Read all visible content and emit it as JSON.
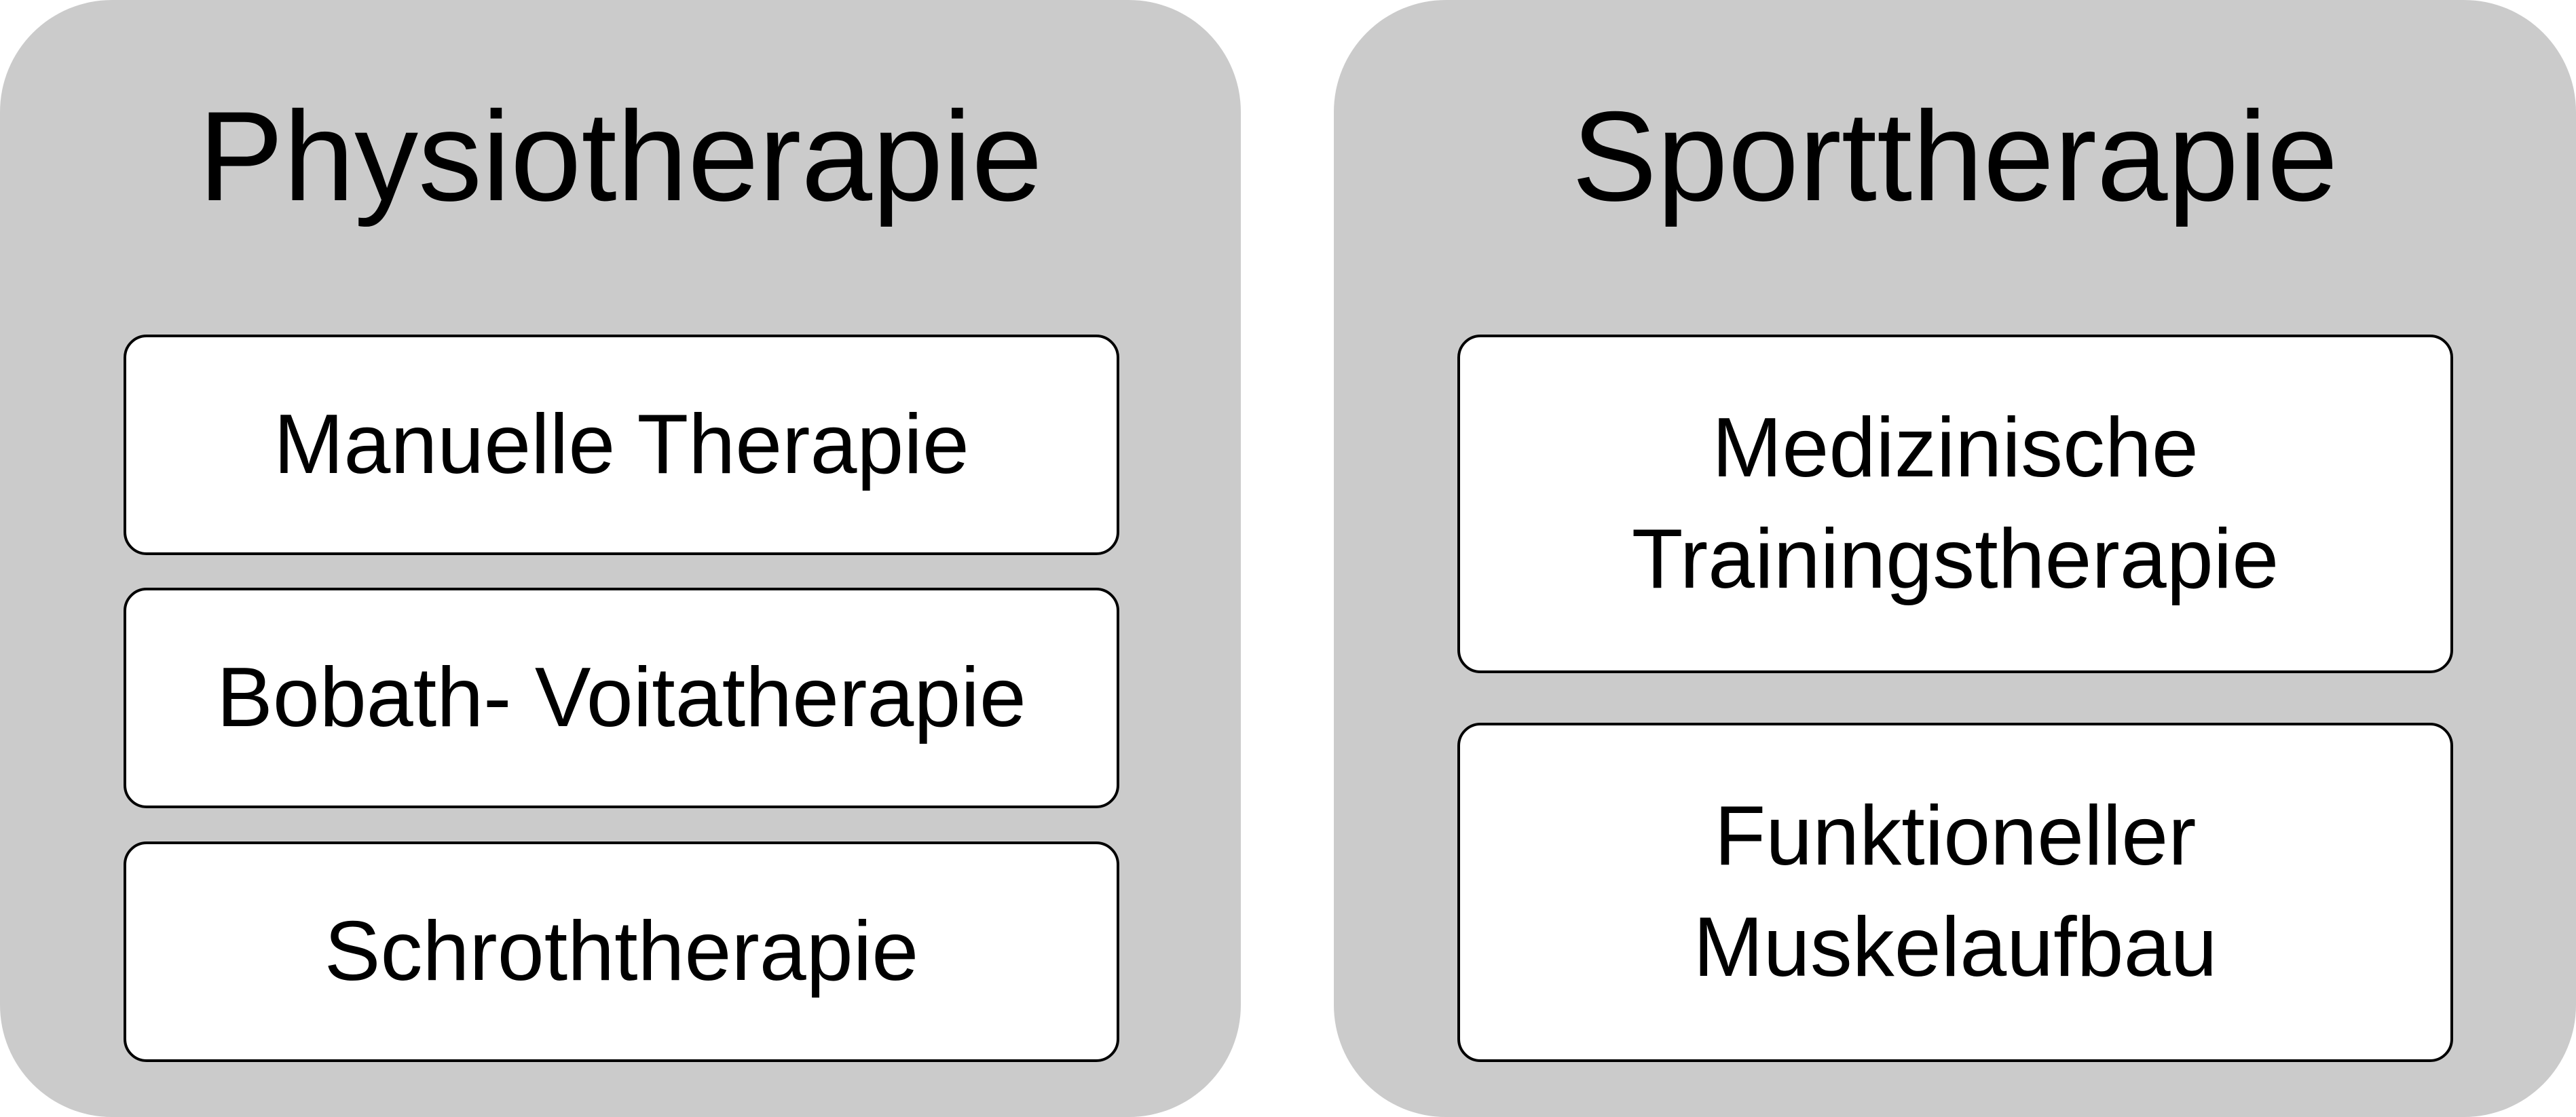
{
  "panels": [
    {
      "title": "Physiotherapie",
      "items": [
        {
          "lines": [
            "Manuelle Therapie"
          ]
        },
        {
          "lines": [
            "Bobath- Voitatherapie"
          ]
        },
        {
          "lines": [
            "Schroththerapie"
          ]
        }
      ]
    },
    {
      "title": "Sporttherapie",
      "items": [
        {
          "lines": [
            "Medizinische",
            "Trainingstherapie"
          ]
        },
        {
          "lines": [
            "Funktioneller",
            "Muskelaufbau"
          ]
        }
      ]
    }
  ],
  "colors": {
    "panel_background": "#cbcbcb",
    "box_background": "#ffffff",
    "box_border": "#000000",
    "text": "#000000"
  }
}
